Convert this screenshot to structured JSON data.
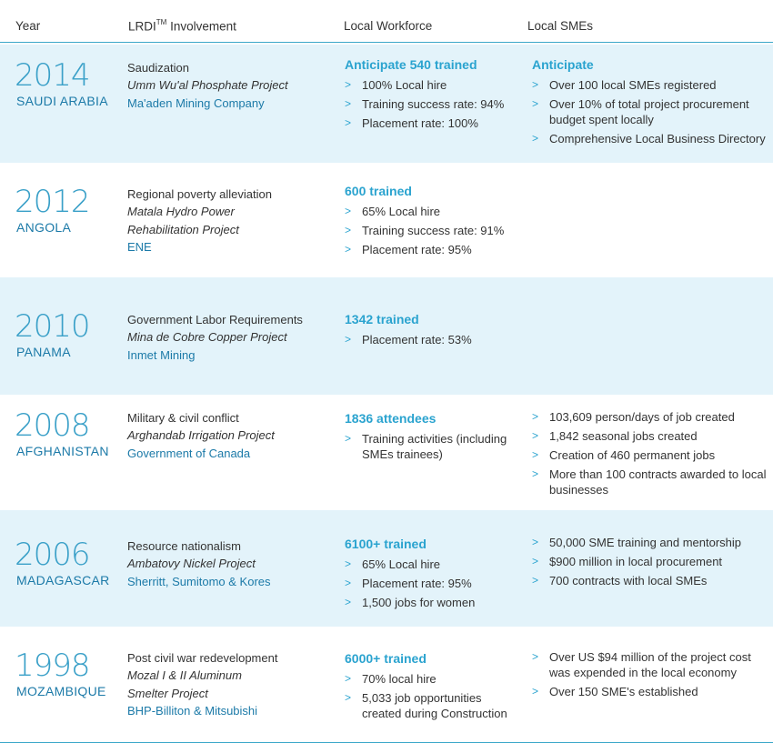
{
  "header": {
    "year": "Year",
    "involvement_prefix": "LRDI",
    "involvement_sup": "TM",
    "involvement_suffix": " Involvement",
    "workforce": "Local Workforce",
    "smes": "Local SMEs"
  },
  "rows": [
    {
      "year": "2014",
      "country": "SAUDI ARABIA",
      "involvement": [
        "Saudization",
        "Umm Wu'al Phosphate Project"
      ],
      "client": "Ma'aden Mining Company",
      "workforce_title": "Anticipate 540 trained",
      "workforce": [
        "100% Local hire",
        "Training success rate: 94%",
        " Placement rate: 100%"
      ],
      "smes_title": "Anticipate",
      "smes": [
        "Over 100 local SMEs registered",
        "Over 10% of total project procurement budget spent locally",
        "Comprehensive Local Business Directory"
      ]
    },
    {
      "year": "2012",
      "country": "ANGOLA",
      "involvement": [
        "Regional poverty alleviation",
        "Matala Hydro Power",
        "Rehabilitation Project"
      ],
      "client": "ENE",
      "workforce_title": "600 trained",
      "workforce": [
        "65% Local hire",
        "Training success rate: 91%",
        "Placement rate: 95%"
      ],
      "smes_title": "",
      "smes": []
    },
    {
      "year": "2010",
      "country": "PANAMA",
      "involvement": [
        "Government Labor Requirements",
        "Mina de Cobre Copper Project"
      ],
      "client": "Inmet Mining",
      "workforce_title": "1342 trained",
      "workforce": [
        "Placement rate: 53%"
      ],
      "smes_title": "",
      "smes": []
    },
    {
      "year": "2008",
      "country": "AFGHANISTAN",
      "involvement": [
        "Military & civil conflict",
        "Arghandab Irrigation Project"
      ],
      "client": "Government of Canada",
      "workforce_title": "1836 attendees",
      "workforce": [
        "Training activities (including SMEs trainees)"
      ],
      "smes_title": "",
      "smes": [
        "103,609 person/days of job created",
        "1,842 seasonal jobs created",
        "Creation of 460 permanent jobs",
        "More than 100 contracts awarded to local businesses"
      ]
    },
    {
      "year": "2006",
      "country": "MADAGASCAR",
      "involvement": [
        "Resource nationalism",
        "Ambatovy Nickel Project"
      ],
      "client": "Sherritt, Sumitomo & Kores",
      "workforce_title": "6100+ trained",
      "workforce": [
        "65% Local hire",
        "Placement rate: 95%",
        "1,500 jobs for women"
      ],
      "smes_title": "",
      "smes": [
        "50,000 SME training and mentorship",
        "$900 million in local procurement",
        "700 contracts with local SMEs"
      ]
    },
    {
      "year": "1998",
      "country": "MOZAMBIQUE",
      "involvement": [
        "Post civil war redevelopment",
        "Mozal I & II Aluminum",
        "Smelter Project"
      ],
      "client": "BHP-Billiton & Mitsubishi",
      "workforce_title": "6000+ trained",
      "workforce": [
        "70% local hire",
        "5,033 job opportunities created during Construction"
      ],
      "smes_title": "",
      "smes": [
        "Over US $94 million of the project cost was expended in the local economy",
        "Over 150 SME's established"
      ]
    }
  ],
  "colors": {
    "accent": "#2aa3cf",
    "shade": "#e3f3fa",
    "dark_blue": "#1c7aa8"
  }
}
